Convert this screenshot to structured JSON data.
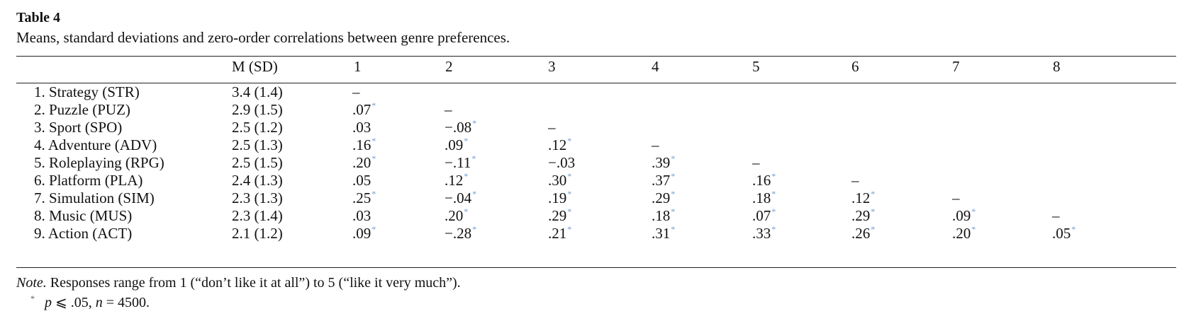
{
  "table": {
    "title": "Table 4",
    "caption": "Means, standard deviations and zero-order correlations between genre preferences.",
    "headers": [
      "M (SD)",
      "1",
      "2",
      "3",
      "4",
      "5",
      "6",
      "7",
      "8"
    ],
    "rows": [
      {
        "label": "1. Strategy (STR)",
        "msd": "3.4 (1.4)",
        "cells": [
          "–"
        ]
      },
      {
        "label": "2. Puzzle (PUZ)",
        "msd": "2.9 (1.5)",
        "cells": [
          ".07*",
          "–"
        ]
      },
      {
        "label": "3. Sport (SPO)",
        "msd": "2.5 (1.2)",
        "cells": [
          ".03",
          "−.08*",
          "–"
        ]
      },
      {
        "label": "4. Adventure (ADV)",
        "msd": "2.5 (1.3)",
        "cells": [
          ".16*",
          ".09*",
          ".12*",
          "–"
        ]
      },
      {
        "label": "5. Roleplaying (RPG)",
        "msd": "2.5 (1.5)",
        "cells": [
          ".20*",
          "−.11*",
          "−.03",
          ".39*",
          "–"
        ]
      },
      {
        "label": "6. Platform (PLA)",
        "msd": "2.4 (1.3)",
        "cells": [
          ".05",
          ".12*",
          ".30*",
          ".37*",
          ".16*",
          "–"
        ]
      },
      {
        "label": "7. Simulation (SIM)",
        "msd": "2.3 (1.3)",
        "cells": [
          ".25*",
          "−.04*",
          ".19*",
          ".29*",
          ".18*",
          ".12*",
          "–"
        ]
      },
      {
        "label": "8. Music (MUS)",
        "msd": "2.3 (1.4)",
        "cells": [
          ".03",
          ".20*",
          ".29*",
          ".18*",
          ".07*",
          ".29*",
          ".09*",
          "–"
        ]
      },
      {
        "label": "9. Action (ACT)",
        "msd": "2.1 (1.2)",
        "cells": [
          ".09*",
          "−.28*",
          ".21*",
          ".31*",
          ".33*",
          ".26*",
          ".20*",
          ".05*"
        ]
      }
    ],
    "note_label": "Note.",
    "note_text": " Responses range from 1 (“don’t like it at all”) to 5 (“like it very much”).",
    "footnote_marker": "*",
    "footnote_p": "p",
    "footnote_rest": " ⩽ .05, ",
    "footnote_n": "n",
    "footnote_value": " = 4500.",
    "significance_color": "#6a9bd8"
  }
}
